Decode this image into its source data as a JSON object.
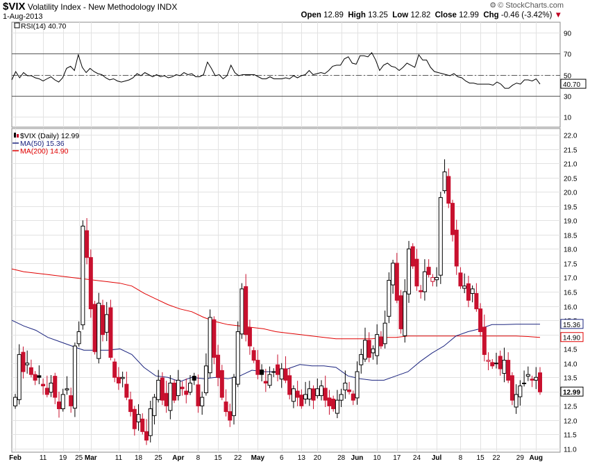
{
  "header": {
    "symbol": "$VIX",
    "name": "Volatility Index - New Methodology",
    "exchange": "INDX",
    "date": "1-Aug-2013",
    "open_label": "Open",
    "open": "12.89",
    "high_label": "High",
    "high": "13.25",
    "low_label": "Low",
    "low": "12.82",
    "close_label": "Close",
    "close": "12.99",
    "chg_label": "Chg",
    "chg": "-0.46 (-3.42%)",
    "brand": "© StockCharts.com",
    "arrow_icon": "down-triangle-icon"
  },
  "chart_data": [
    {
      "type": "line",
      "title": "RSI(14) 40.70",
      "ylim": [
        0,
        100
      ],
      "yticks": [
        "10",
        "30",
        "50",
        "70",
        "90"
      ],
      "reference_lines": [
        30,
        50,
        70
      ],
      "last_value_label": "40.70",
      "values": [
        45,
        53,
        47,
        52,
        49,
        49,
        47,
        46,
        44,
        46,
        48,
        45,
        43,
        47,
        56,
        58,
        54,
        69,
        57,
        52,
        56,
        53,
        51,
        50,
        47,
        45,
        46,
        44,
        43,
        44,
        45,
        47,
        51,
        49,
        52,
        50,
        48,
        50,
        48,
        49,
        47,
        48,
        50,
        49,
        52,
        50,
        51,
        48,
        48,
        50,
        62,
        56,
        49,
        50,
        46,
        49,
        59,
        52,
        49,
        50,
        50,
        50,
        50,
        48,
        46,
        46,
        48,
        46,
        46,
        46,
        47,
        46,
        49,
        47,
        49,
        50,
        54,
        50,
        51,
        52,
        51,
        54,
        58,
        59,
        59,
        65,
        67,
        61,
        60,
        68,
        68,
        67,
        71,
        64,
        54,
        59,
        61,
        58,
        57,
        54,
        57,
        61,
        59,
        57,
        69,
        64,
        64,
        57,
        53,
        52,
        51,
        50,
        49,
        51,
        48,
        47,
        44,
        42,
        42,
        41,
        41,
        41,
        41,
        40,
        43,
        41,
        37,
        37,
        40,
        42,
        41,
        45,
        45,
        44,
        46,
        41
      ]
    },
    {
      "type": "candlestick",
      "title": "$VIX (Daily) 12.99",
      "ylim": [
        11.0,
        22.0
      ],
      "yticks": [
        "11.0",
        "11.5",
        "12.0",
        "12.5",
        "13.0",
        "13.5",
        "14.0",
        "14.5",
        "15.0",
        "15.5",
        "16.0",
        "16.5",
        "17.0",
        "17.5",
        "18.0",
        "18.5",
        "19.0",
        "19.5",
        "20.0",
        "20.5",
        "21.0",
        "21.5",
        "22.0"
      ],
      "xticks": [
        "Feb",
        "11",
        "19",
        "25",
        "Mar",
        "11",
        "18",
        "25",
        "Apr",
        "8",
        "15",
        "22",
        "May",
        "6",
        "13",
        "20",
        "28",
        "Jun",
        "10",
        "17",
        "24",
        "Jul",
        "8",
        "15",
        "22",
        "29",
        "Aug"
      ],
      "legend": [
        {
          "name": "$VIX (Daily) 12.99",
          "color": "#000000",
          "icon": "candle-icon"
        },
        {
          "name": "MA(50) 15.36",
          "color": "#1a237e"
        },
        {
          "name": "MA(200) 14.90",
          "color": "#e00000"
        }
      ],
      "last_value_labels": [
        "15.36",
        "14.90",
        "12.99"
      ],
      "candles": [
        12.8,
        14.3,
        13.7,
        14.0,
        13.6,
        13.4,
        13.5,
        13.2,
        12.9,
        13.3,
        12.8,
        12.4,
        12.9,
        13.1,
        12.5,
        14.6,
        15.1,
        18.8,
        17.7,
        15.9,
        14.4,
        16.1,
        15.0,
        15.7,
        14.2,
        13.5,
        13.3,
        13.5,
        12.8,
        12.3,
        11.7,
        12.2,
        11.6,
        11.3,
        12.4,
        12.8,
        13.4,
        12.7,
        12.5,
        13.3,
        12.7,
        13.4,
        13.1,
        12.9,
        13.3,
        13.4,
        12.5,
        12.8,
        13.9,
        15.6,
        14.2,
        13.5,
        12.8,
        12.3,
        12.0,
        13.5,
        15.1,
        16.6,
        15.0,
        14.6,
        14.1,
        13.6,
        13.6,
        13.3,
        13.6,
        13.7,
        13.6,
        13.8,
        13.4,
        12.9,
        13.1,
        12.8,
        12.5,
        12.9,
        13.1,
        12.7,
        13.1,
        13.2,
        12.7,
        12.5,
        12.4,
        12.7,
        12.9,
        13.3,
        13.0,
        12.7,
        13.7,
        14.3,
        14.8,
        14.2,
        14.5,
        15.0,
        14.6,
        15.4,
        16.9,
        17.5,
        16.2,
        15.2,
        16.5,
        18.0,
        17.4,
        16.7,
        16.5,
        17.2,
        17.1,
        17.0,
        17.0,
        19.8,
        20.7,
        19.6,
        18.5,
        17.4,
        16.7,
        16.7,
        16.2,
        16.6,
        15.9,
        15.1,
        14.3,
        14.1,
        13.9,
        14.0,
        13.8,
        14.1,
        13.4,
        12.7,
        12.9,
        13.2,
        13.3,
        13.6,
        13.4,
        13.5,
        12.99
      ],
      "ma50": [
        15.5,
        15.3,
        15.15,
        14.9,
        14.75,
        14.6,
        14.45,
        14.45,
        14.45,
        14.5,
        14.3,
        13.85,
        13.55,
        13.5,
        13.35,
        13.5,
        13.45,
        13.5,
        13.45,
        13.55,
        13.75,
        13.7,
        13.7,
        13.8,
        13.95,
        13.9,
        13.9,
        13.85,
        13.55,
        13.45,
        13.4,
        13.4,
        13.55,
        13.7,
        14.05,
        14.35,
        14.6,
        14.95,
        15.1,
        15.2,
        15.35,
        15.35,
        15.36,
        15.36,
        15.36
      ],
      "ma200": [
        17.3,
        17.2,
        17.15,
        17.1,
        17.05,
        17.0,
        16.95,
        16.9,
        16.85,
        16.8,
        16.7,
        16.45,
        16.25,
        16.05,
        15.9,
        15.8,
        15.6,
        15.45,
        15.35,
        15.3,
        15.25,
        15.2,
        15.1,
        15.05,
        15.0,
        14.95,
        14.9,
        14.85,
        14.85,
        14.85,
        14.85,
        14.9,
        14.9,
        14.95,
        14.95,
        14.95,
        14.95,
        14.95,
        14.95,
        14.95,
        14.95,
        14.95,
        14.95,
        14.93,
        14.9
      ]
    }
  ]
}
